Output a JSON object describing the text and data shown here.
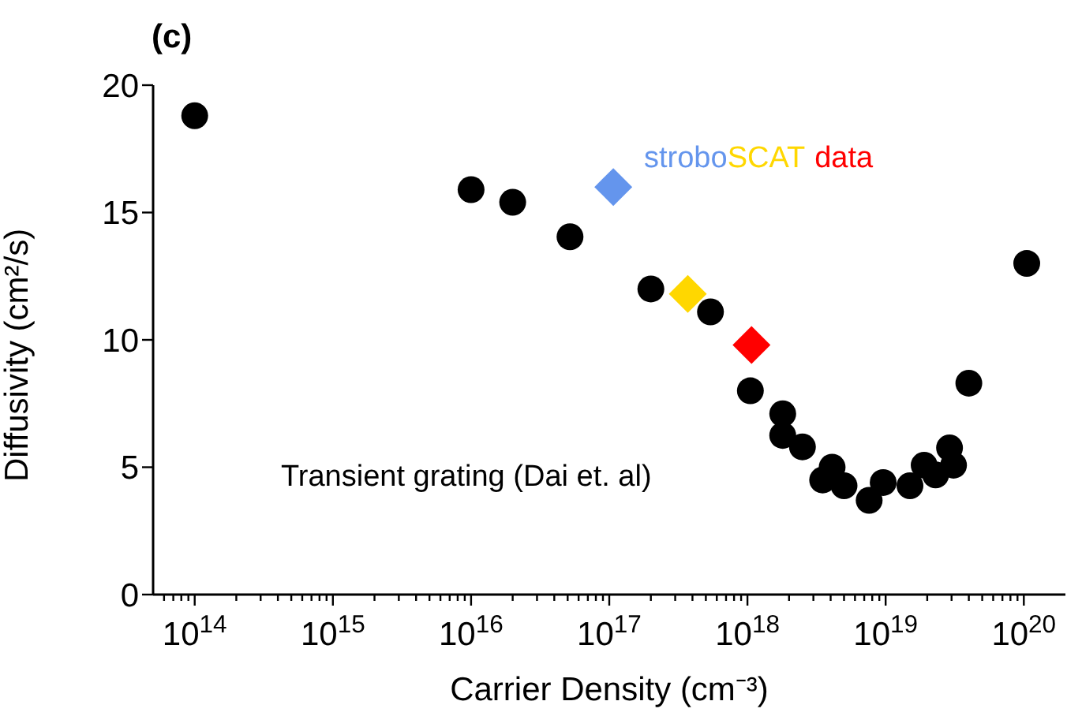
{
  "chart_data": {
    "type": "scatter",
    "title": "(c)",
    "xlabel": "Carrier Density (cm⁻³)",
    "ylabel": "Diffusivity (cm²/s)",
    "log": "x",
    "xlim": [
      50000000000000.0,
      2e+20
    ],
    "ylim": [
      0,
      20
    ],
    "yticks": [
      0,
      5,
      10,
      15,
      20
    ],
    "grid": false,
    "legend": false,
    "xticks": [
      {
        "value": 60000000000000.0,
        "label": null
      },
      {
        "value": 70000000000000.0,
        "label": null
      },
      {
        "value": 80000000000000.0,
        "label": null
      },
      {
        "value": 90000000000000.0,
        "label": null
      },
      {
        "value": 100000000000000.0,
        "label": "10$^{14}$"
      },
      {
        "value": 200000000000000.0,
        "label": null
      },
      {
        "value": 300000000000000.0,
        "label": null
      },
      {
        "value": 400000000000000.0,
        "label": null
      },
      {
        "value": 500000000000000.0,
        "label": null
      },
      {
        "value": 600000000000000.0,
        "label": null
      },
      {
        "value": 700000000000000.0,
        "label": null
      },
      {
        "value": 800000000000000.0,
        "label": null
      },
      {
        "value": 900000000000000.0,
        "label": null
      },
      {
        "value": 1000000000000000.0,
        "label": "10$^{15}$"
      },
      {
        "value": 2000000000000000.0,
        "label": null
      },
      {
        "value": 3000000000000000.0,
        "label": null
      },
      {
        "value": 4000000000000000.0,
        "label": null
      },
      {
        "value": 5000000000000000.0,
        "label": null
      },
      {
        "value": 6000000000000000.0,
        "label": null
      },
      {
        "value": 7000000000000000.0,
        "label": null
      },
      {
        "value": 8000000000000000.0,
        "label": null
      },
      {
        "value": 9000000000000000.0,
        "label": null
      },
      {
        "value": 1e+16,
        "label": "10$^{16}$"
      },
      {
        "value": 2e+16,
        "label": null
      },
      {
        "value": 3e+16,
        "label": null
      },
      {
        "value": 4e+16,
        "label": null
      },
      {
        "value": 5e+16,
        "label": null
      },
      {
        "value": 6e+16,
        "label": null
      },
      {
        "value": 7e+16,
        "label": null
      },
      {
        "value": 8e+16,
        "label": null
      },
      {
        "value": 9e+16,
        "label": null
      },
      {
        "value": 1e+17,
        "label": "10$^{17}$"
      },
      {
        "value": 2e+17,
        "label": null
      },
      {
        "value": 3e+17,
        "label": null
      },
      {
        "value": 4e+17,
        "label": null
      },
      {
        "value": 5e+17,
        "label": null
      },
      {
        "value": 6e+17,
        "label": null
      },
      {
        "value": 7e+17,
        "label": null
      },
      {
        "value": 8e+17,
        "label": null
      },
      {
        "value": 9e+17,
        "label": null
      },
      {
        "value": 1e+18,
        "label": "10$^{18}$"
      },
      {
        "value": 2e+18,
        "label": null
      },
      {
        "value": 3e+18,
        "label": null
      },
      {
        "value": 4e+18,
        "label": null
      },
      {
        "value": 5e+18,
        "label": null
      },
      {
        "value": 6e+18,
        "label": null
      },
      {
        "value": 7e+18,
        "label": null
      },
      {
        "value": 8e+18,
        "label": null
      },
      {
        "value": 9e+18,
        "label": null
      },
      {
        "value": 1e+19,
        "label": "10$^{19}$"
      },
      {
        "value": 2e+19,
        "label": null
      },
      {
        "value": 3e+19,
        "label": null
      },
      {
        "value": 4e+19,
        "label": null
      },
      {
        "value": 5e+19,
        "label": null
      },
      {
        "value": 6e+19,
        "label": null
      },
      {
        "value": 7e+19,
        "label": null
      },
      {
        "value": 8e+19,
        "label": null
      },
      {
        "value": 9e+19,
        "label": null
      },
      {
        "value": 1e+20,
        "label": "10$^{20}$"
      }
    ],
    "annotations": [
      "strobo",
      "SCAT",
      "data",
      "Transient grating (Dai et. al)"
    ],
    "series": [
      {
        "marker": "circle",
        "color": "#000000",
        "x": [
          100000000000000.0,
          1e+16,
          2e+16,
          5.2e+16,
          2e+17,
          5.4e+17,
          1.05e+18,
          1.8e+18,
          1.8e+18,
          2.5e+18,
          4.1e+18,
          3.5e+18,
          5e+18,
          7.6e+18,
          9.6e+18,
          1.5e+19,
          1.9e+19,
          2.3e+19,
          2.9e+19,
          3.1e+19,
          4e+19,
          1.05e+20
        ],
        "values": [
          18.8,
          15.9,
          15.4,
          14.05,
          12.0,
          11.1,
          8.0,
          7.1,
          6.25,
          5.8,
          5.0,
          4.5,
          4.27,
          3.7,
          4.4,
          4.27,
          5.08,
          4.7,
          5.76,
          5.08,
          8.3,
          13.0
        ]
      },
      {
        "marker": "diamond",
        "color": "#6495ed",
        "x": [
          1.07e+17
        ],
        "values": [
          16.0
        ]
      },
      {
        "marker": "diamond",
        "color": "#ffd700",
        "x": [
          3.7e+17
        ],
        "values": [
          11.8
        ]
      },
      {
        "marker": "diamond",
        "color": "#ff0000",
        "x": [
          1.07e+18
        ],
        "values": [
          9.8
        ]
      }
    ]
  }
}
